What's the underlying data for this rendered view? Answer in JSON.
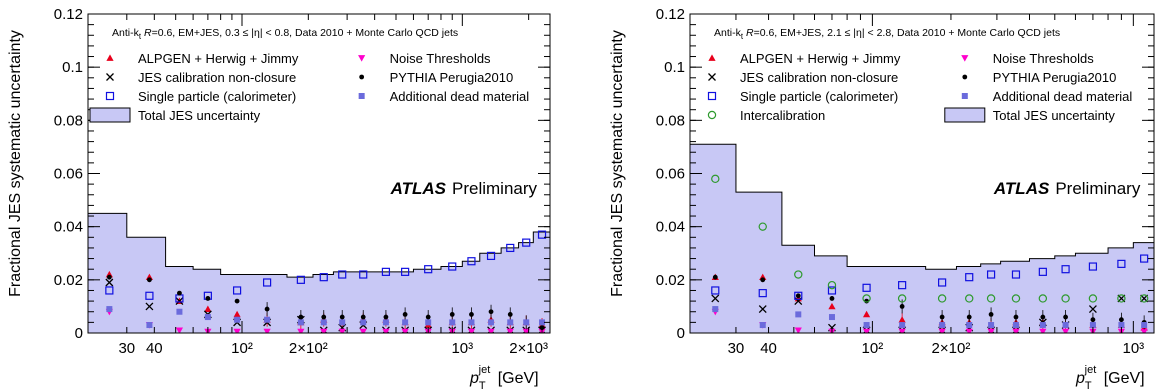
{
  "chart_data": [
    {
      "type": "scatter",
      "header": "Anti-k_t R=0.6, EM+JES, 0.3 ≤ |η| < 0.8, Data 2010 + Monte Carlo QCD jets",
      "ylabel": "Fractional JES systematic uncertainty",
      "xlabel": "p_T^jet [GeV]",
      "atlas_label": "ATLAS",
      "atlas_suffix": "Preliminary",
      "xscale": "log",
      "xlim": [
        20,
        2500
      ],
      "ylim": [
        0,
        0.12
      ],
      "y_ticks": [
        "0",
        "0.02",
        "0.04",
        "0.06",
        "0.08",
        "0.1",
        "0.12"
      ],
      "x_tick_labels": [
        {
          "x": 30,
          "label": "30"
        },
        {
          "x": 40,
          "label": "40"
        },
        {
          "x": 100,
          "label": "10²"
        },
        {
          "x": 200,
          "label": "2×10²"
        },
        {
          "x": 1000,
          "label": "10³"
        },
        {
          "x": 2000,
          "label": "2×10³"
        }
      ],
      "total_band": {
        "name": "Total JES uncertainty",
        "color": "#c8c8f5",
        "bin_edges": [
          20,
          30,
          45,
          60,
          80,
          110,
          160,
          210,
          260,
          310,
          400,
          500,
          600,
          800,
          1000,
          1200,
          1500,
          1800,
          2100,
          2500
        ],
        "values": [
          0.045,
          0.036,
          0.025,
          0.024,
          0.022,
          0.022,
          0.021,
          0.022,
          0.023,
          0.023,
          0.023,
          0.023,
          0.024,
          0.025,
          0.027,
          0.03,
          0.032,
          0.034,
          0.038
        ]
      },
      "series": [
        {
          "name": "ALPGEN + Herwig + Jimmy",
          "marker": "triangle-up",
          "color": "#e8001c",
          "x": [
            25,
            38,
            52,
            70,
            95,
            130,
            185,
            235,
            285,
            355,
            450,
            550,
            700,
            900,
            1100,
            1350,
            1650,
            1950,
            2300
          ],
          "y": [
            0.022,
            0.021,
            0.012,
            0.009,
            0.007,
            0.005,
            0.004,
            0.005,
            0.004,
            0.005,
            0.005,
            0.004,
            0.003,
            0.004,
            0.004,
            0.005,
            0.004,
            0.004,
            0.003
          ]
        },
        {
          "name": "JES calibration non-closure",
          "marker": "cross",
          "color": "#000000",
          "x": [
            25,
            38,
            52,
            70,
            95,
            130,
            185,
            235,
            285,
            355,
            450,
            550,
            700,
            900,
            1100,
            1350,
            1650,
            1950,
            2300
          ],
          "y": [
            0.019,
            0.01,
            0.012,
            0.007,
            0.004,
            0.004,
            0.005,
            0.001,
            0.002,
            0.003,
            0.001,
            0.001,
            0.001,
            0.001,
            0.001,
            0.001,
            0.001,
            0.001,
            0.001
          ]
        },
        {
          "name": "Single particle (calorimeter)",
          "marker": "open-square",
          "color": "#1010e0",
          "x": [
            25,
            38,
            52,
            70,
            95,
            130,
            185,
            235,
            285,
            355,
            450,
            550,
            700,
            900,
            1100,
            1350,
            1650,
            1950,
            2300
          ],
          "y": [
            0.016,
            0.014,
            0.013,
            0.014,
            0.016,
            0.019,
            0.02,
            0.021,
            0.022,
            0.022,
            0.023,
            0.023,
            0.024,
            0.025,
            0.027,
            0.029,
            0.032,
            0.034,
            0.037
          ]
        },
        {
          "name": "Noise Thresholds",
          "marker": "triangle-down",
          "color": "#ff00cc",
          "x": [
            25,
            38,
            52,
            70,
            95,
            130,
            185,
            235,
            285,
            355,
            450,
            550,
            700,
            900,
            1100,
            1350,
            1650,
            1950,
            2300
          ],
          "y": [
            0.008,
            0.003,
            0.001,
            0.0005,
            0.0005,
            0.0005,
            0.0005,
            0.0005,
            0.0005,
            0.0005,
            0.0005,
            0.0005,
            0.0005,
            0.0005,
            0.0005,
            0.0005,
            0.0005,
            0.0005,
            0.0005
          ]
        },
        {
          "name": "PYTHIA Perugia2010",
          "marker": "dot",
          "color": "#000000",
          "x": [
            25,
            38,
            52,
            70,
            95,
            130,
            185,
            235,
            285,
            355,
            450,
            550,
            700,
            900,
            1100,
            1350,
            1650,
            1950,
            2300
          ],
          "y": [
            0.021,
            0.02,
            0.015,
            0.013,
            0.012,
            0.009,
            0.006,
            0.006,
            0.006,
            0.006,
            0.006,
            0.007,
            0.006,
            0.007,
            0.007,
            0.008,
            0.007,
            0.004,
            0.002
          ]
        },
        {
          "name": "Additional dead material",
          "marker": "filled-square",
          "color": "#6b6bdc",
          "x": [
            25,
            38,
            52,
            70,
            95,
            130,
            185,
            235,
            285,
            355,
            450,
            550,
            700,
            900,
            1100,
            1350,
            1650,
            1950,
            2300
          ],
          "y": [
            0.009,
            0.003,
            0.008,
            0.006,
            0.005,
            0.005,
            0.004,
            0.004,
            0.004,
            0.004,
            0.004,
            0.004,
            0.004,
            0.004,
            0.004,
            0.004,
            0.004,
            0.004,
            0.004
          ]
        }
      ],
      "legend_order": [
        "ALPGEN + Herwig + Jimmy",
        "Noise Thresholds",
        "JES calibration non-closure",
        "PYTHIA Perugia2010",
        "Single particle (calorimeter)",
        "Additional dead material",
        "Total JES uncertainty"
      ]
    },
    {
      "type": "scatter",
      "header": "Anti-k_t R=0.6, EM+JES, 2.1 ≤ |η| < 2.8, Data 2010 + Monte Carlo QCD jets",
      "ylabel": "Fractional JES systematic uncertainty",
      "xlabel": "p_T^jet [GeV]",
      "atlas_label": "ATLAS",
      "atlas_suffix": "Preliminary",
      "xscale": "log",
      "xlim": [
        20,
        1200
      ],
      "ylim": [
        0,
        0.12
      ],
      "y_ticks": [
        "0",
        "0.02",
        "0.04",
        "0.06",
        "0.08",
        "0.1",
        "0.12"
      ],
      "x_tick_labels": [
        {
          "x": 30,
          "label": "30"
        },
        {
          "x": 40,
          "label": "40"
        },
        {
          "x": 100,
          "label": "10²"
        },
        {
          "x": 200,
          "label": "2×10²"
        },
        {
          "x": 1000,
          "label": "10³"
        }
      ],
      "total_band": {
        "name": "Total JES uncertainty",
        "color": "#c8c8f5",
        "bin_edges": [
          20,
          30,
          45,
          60,
          80,
          110,
          160,
          210,
          260,
          310,
          400,
          500,
          600,
          800,
          1000,
          1200
        ],
        "values": [
          0.071,
          0.053,
          0.033,
          0.029,
          0.025,
          0.025,
          0.024,
          0.025,
          0.026,
          0.027,
          0.028,
          0.029,
          0.03,
          0.032,
          0.034
        ]
      },
      "series": [
        {
          "name": "ALPGEN + Herwig + Jimmy",
          "marker": "triangle-up",
          "color": "#e8001c",
          "x": [
            25,
            38,
            52,
            70,
            95,
            130,
            185,
            235,
            285,
            355,
            450,
            550,
            700,
            900,
            1100
          ],
          "y": [
            0.021,
            0.021,
            0.013,
            0.01,
            0.007,
            0.005,
            0.004,
            0.004,
            0.003,
            0.004,
            0.004,
            0.003,
            0.003,
            0.003,
            0.002
          ]
        },
        {
          "name": "JES calibration non-closure",
          "marker": "cross",
          "color": "#000000",
          "x": [
            25,
            38,
            52,
            70,
            95,
            130,
            185,
            235,
            285,
            355,
            450,
            550,
            700,
            900,
            1100
          ],
          "y": [
            0.013,
            0.009,
            0.012,
            0.002,
            0.001,
            0.001,
            0.001,
            0.002,
            0.001,
            0.001,
            0.004,
            0.003,
            0.009,
            0.013,
            0.013
          ]
        },
        {
          "name": "Single particle (calorimeter)",
          "marker": "open-square",
          "color": "#1010e0",
          "x": [
            25,
            38,
            52,
            70,
            95,
            130,
            185,
            235,
            285,
            355,
            450,
            550,
            700,
            900,
            1100
          ],
          "y": [
            0.016,
            0.015,
            0.014,
            0.016,
            0.017,
            0.018,
            0.019,
            0.021,
            0.022,
            0.022,
            0.023,
            0.024,
            0.025,
            0.026,
            0.028
          ]
        },
        {
          "name": "Noise Thresholds",
          "marker": "triangle-down",
          "color": "#ff00cc",
          "x": [
            25,
            38,
            52,
            70,
            95,
            130,
            185,
            235,
            285,
            355,
            450,
            550,
            700,
            900,
            1100
          ],
          "y": [
            0.008,
            0.003,
            0.001,
            0.0005,
            0.0005,
            0.0005,
            0.0005,
            0.0005,
            0.0005,
            0.0005,
            0.0005,
            0.0005,
            0.0005,
            0.0005,
            0.0005
          ]
        },
        {
          "name": "PYTHIA Perugia2010",
          "marker": "dot",
          "color": "#000000",
          "x": [
            25,
            38,
            52,
            70,
            95,
            130,
            185,
            235,
            285,
            355,
            450,
            550,
            700,
            900,
            1100
          ],
          "y": [
            0.021,
            0.02,
            0.014,
            0.013,
            0.012,
            0.01,
            0.006,
            0.006,
            0.007,
            0.006,
            0.006,
            0.006,
            0.005,
            0.005,
            0.004
          ]
        },
        {
          "name": "Additional dead material",
          "marker": "filled-square",
          "color": "#6b6bdc",
          "x": [
            25,
            38,
            52,
            70,
            95,
            130,
            185,
            235,
            285,
            355,
            450,
            550,
            700,
            900,
            1100
          ],
          "y": [
            0.009,
            0.003,
            0.007,
            0.006,
            0.003,
            0.003,
            0.003,
            0.003,
            0.003,
            0.003,
            0.003,
            0.003,
            0.003,
            0.003,
            0.003
          ]
        },
        {
          "name": "Intercalibration",
          "marker": "open-circle",
          "color": "#2e9a2e",
          "x": [
            25,
            38,
            52,
            70,
            95,
            130,
            185,
            235,
            285,
            355,
            450,
            550,
            700,
            900,
            1100
          ],
          "y": [
            0.058,
            0.04,
            0.022,
            0.018,
            0.013,
            0.013,
            0.013,
            0.013,
            0.013,
            0.013,
            0.013,
            0.013,
            0.013,
            0.013,
            0.013
          ]
        }
      ],
      "legend_order": [
        "ALPGEN + Herwig + Jimmy",
        "Noise Thresholds",
        "JES calibration non-closure",
        "PYTHIA Perugia2010",
        "Single particle (calorimeter)",
        "Additional dead material",
        "Intercalibration",
        "Total JES uncertainty"
      ]
    }
  ]
}
